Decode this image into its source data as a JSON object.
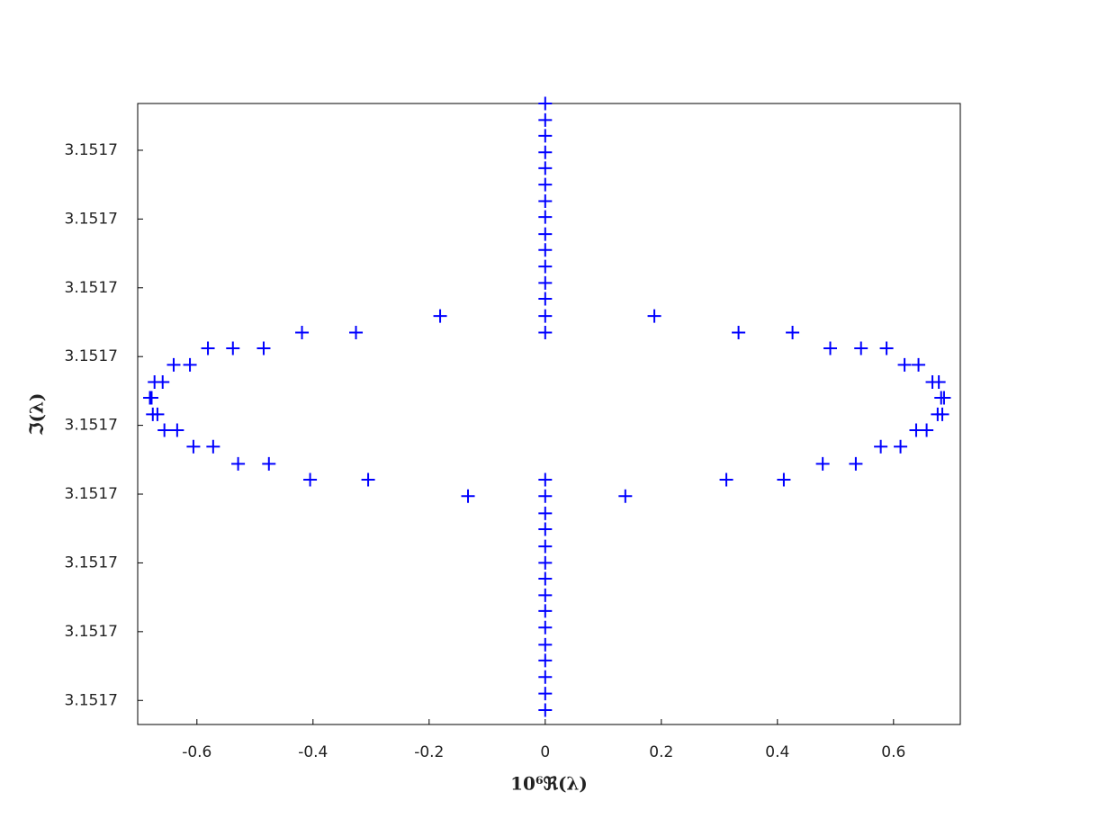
{
  "chart_data": {
    "type": "scatter",
    "x_label": "10⁶ℜ(λ)",
    "y_label": "ℑ(λ)",
    "xlim": [
      -0.702,
      0.715
    ],
    "xticks": [
      -0.6,
      -0.4,
      -0.2,
      0,
      0.2,
      0.4,
      0.6
    ],
    "ylim": [
      3.1516565,
      3.1517468
    ],
    "yticks": [
      {
        "value": 3.15166,
        "label": "3.1517"
      },
      {
        "value": 3.15167,
        "label": "3.1517"
      },
      {
        "value": 3.15168,
        "label": "3.1517"
      },
      {
        "value": 3.15169,
        "label": "3.1517"
      },
      {
        "value": 3.1517,
        "label": "3.1517"
      },
      {
        "value": 3.15171,
        "label": "3.1517"
      },
      {
        "value": 3.15172,
        "label": "3.1517"
      },
      {
        "value": 3.15173,
        "label": "3.1517"
      },
      {
        "value": 3.15174,
        "label": "3.1517"
      }
    ],
    "grid": false,
    "series": [
      {
        "color": "#0000ff",
        "marker": "plus",
        "x": [
          0,
          0,
          0,
          0,
          0,
          0,
          0,
          0,
          0,
          0,
          0,
          0,
          0,
          0,
          0,
          0,
          0,
          0,
          0,
          0,
          0,
          0,
          0,
          0,
          0,
          0,
          0,
          0,
          0,
          0,
          -0.181,
          -0.419,
          -0.326,
          -0.581,
          -0.538,
          -0.485,
          -0.64,
          -0.612,
          -0.673,
          -0.659,
          -0.681,
          -0.678,
          -0.676,
          -0.668,
          -0.656,
          -0.634,
          -0.606,
          -0.572,
          -0.529,
          -0.476,
          -0.405,
          -0.305,
          -0.133,
          0.188,
          0.333,
          0.426,
          0.491,
          0.544,
          0.588,
          0.619,
          0.643,
          0.667,
          0.678,
          0.682,
          0.687,
          0.676,
          0.684,
          0.639,
          0.657,
          0.578,
          0.612,
          0.478,
          0.535,
          0.312,
          0.411,
          0.138
        ],
        "y": [
          3.1517468,
          3.1517444,
          3.1517421,
          3.1517397,
          3.1517374,
          3.151735,
          3.1517326,
          3.1517303,
          3.1517278,
          3.1517255,
          3.1517231,
          3.1517207,
          3.1517184,
          3.1517159,
          3.1517135,
          3.1516921,
          3.1516897,
          3.1516872,
          3.1516849,
          3.1516824,
          3.15168,
          3.1516777,
          3.1516753,
          3.151673,
          3.1516706,
          3.1516681,
          3.1516658,
          3.1516634,
          3.151661,
          3.1516586,
          3.1517159,
          3.1517135,
          3.1517135,
          3.1517112,
          3.1517112,
          3.1517112,
          3.1517088,
          3.1517088,
          3.1517063,
          3.1517063,
          3.151704,
          3.151704,
          3.1517016,
          3.1517016,
          3.1516993,
          3.1516993,
          3.1516969,
          3.1516969,
          3.1516944,
          3.1516944,
          3.1516921,
          3.1516921,
          3.1516897,
          3.1517159,
          3.1517135,
          3.1517135,
          3.1517112,
          3.1517112,
          3.1517112,
          3.1517088,
          3.1517088,
          3.1517063,
          3.1517063,
          3.151704,
          3.151704,
          3.1517016,
          3.1517016,
          3.1516993,
          3.1516993,
          3.1516969,
          3.1516969,
          3.1516944,
          3.1516944,
          3.1516921,
          3.1516921,
          3.1516897
        ]
      }
    ]
  }
}
